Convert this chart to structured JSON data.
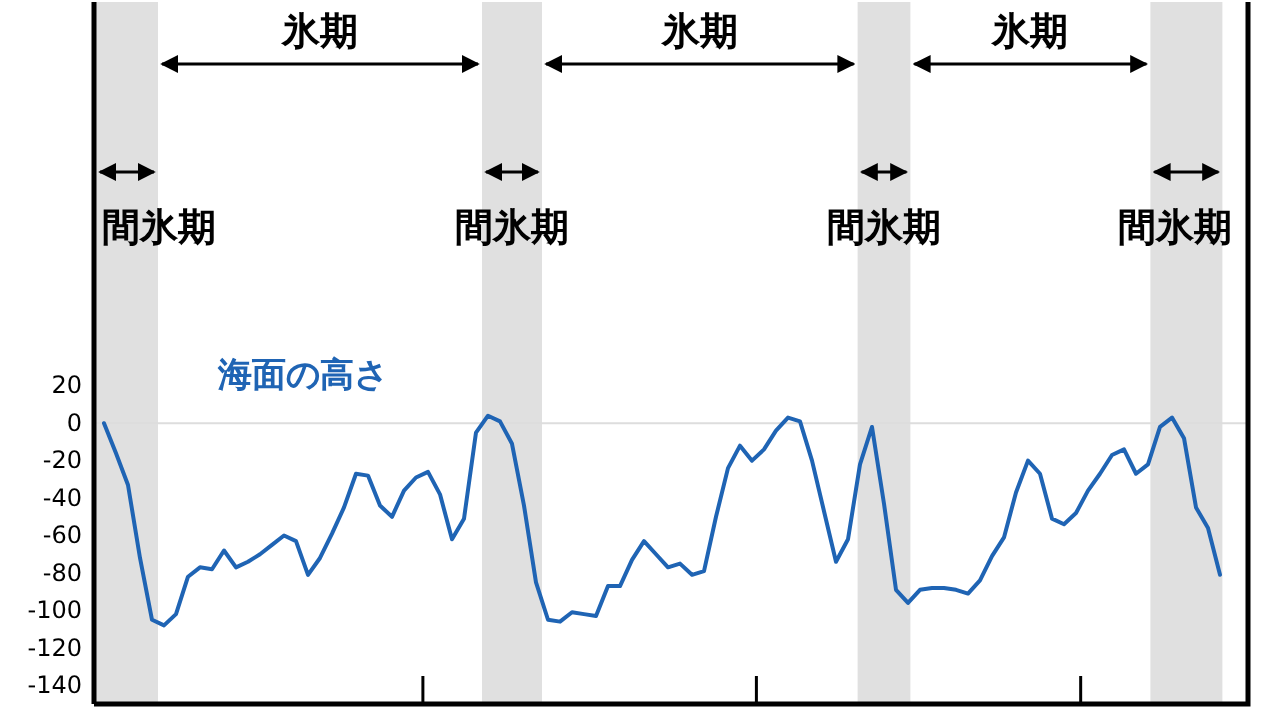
{
  "chart_data": {
    "type": "line",
    "categories": [
      null,
      null,
      null,
      null,
      null,
      null,
      null,
      null,
      null,
      null,
      null,
      null,
      null,
      null,
      null,
      null,
      null,
      null,
      null,
      null,
      null,
      null,
      null,
      null,
      null,
      null,
      null,
      null,
      null,
      null,
      null,
      null,
      null,
      null,
      null,
      null,
      null,
      null,
      null,
      null,
      null,
      null,
      null,
      null,
      null,
      null,
      null,
      null,
      null,
      null,
      null,
      null,
      null,
      null,
      null,
      null,
      null,
      null,
      null,
      null,
      null,
      null,
      null,
      null,
      null,
      null,
      null,
      null,
      null,
      null,
      null,
      null,
      null,
      null,
      null,
      null,
      null,
      null,
      null,
      null,
      null,
      null,
      null,
      null,
      null,
      null,
      null,
      null,
      null,
      null,
      null,
      null,
      null,
      null
    ],
    "series": [
      {
        "name": "海面の高さ",
        "color": "#1f64b4",
        "values": [
          0,
          -16,
          -33,
          -72,
          -105,
          -108,
          -102,
          -82,
          -77,
          -78,
          -68,
          -77,
          -74,
          -70,
          -65,
          -60,
          -63,
          -81,
          -72,
          -59,
          -45,
          -27,
          -28,
          -44,
          -50,
          -36,
          -29,
          -26,
          -38,
          -62,
          -51,
          -5,
          4,
          1,
          -11,
          -44,
          -85,
          -105,
          -106,
          -101,
          -102,
          -103,
          -87,
          -87,
          -73,
          -63,
          -70,
          -77,
          -75,
          -81,
          -79,
          -50,
          -24,
          -12,
          -20,
          -14,
          -4,
          3,
          1,
          -20,
          -47,
          -74,
          -62,
          -22,
          -2,
          -43,
          -89,
          -96,
          -89,
          -88,
          -88,
          -89,
          -91,
          -84,
          -71,
          -61,
          -37,
          -20,
          -27,
          -51,
          -54,
          -48,
          -36,
          -27,
          -17,
          -14,
          -27,
          -22,
          -2,
          3,
          -8,
          -45,
          -56,
          -81
        ]
      }
    ],
    "ylim": [
      -150,
      225
    ],
    "yticks": [
      -140,
      -120,
      -100,
      -80,
      -60,
      -40,
      -20,
      0,
      20
    ],
    "ref_lines": [
      {
        "axis": "y",
        "value": 0,
        "color": "#dddddd"
      }
    ],
    "annotations": [
      "氷期",
      "氷期",
      "氷期",
      "間氷期",
      "間氷期",
      "間氷期",
      "間氷期"
    ]
  }
}
